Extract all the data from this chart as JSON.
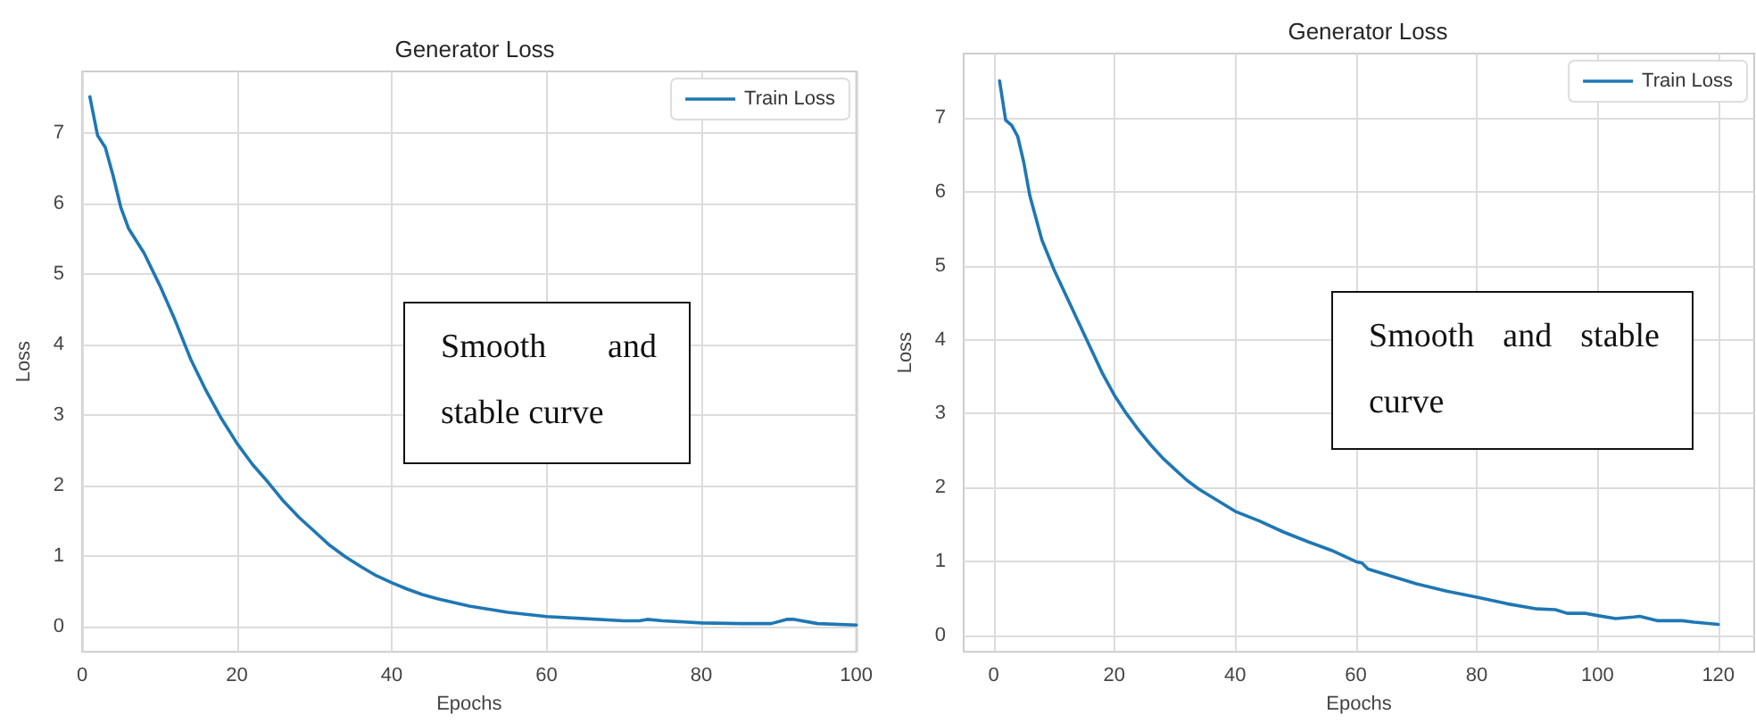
{
  "chart_data": [
    {
      "type": "line",
      "title": "Generator Loss",
      "xlabel": "Epochs",
      "ylabel": "Loss",
      "xlim": [
        0,
        100
      ],
      "xticks": [
        0,
        20,
        40,
        60,
        80,
        100
      ],
      "ylim": [
        -0.36,
        7.88
      ],
      "yticks": [
        0,
        1,
        2,
        3,
        4,
        5,
        6,
        7
      ],
      "grid": true,
      "legend": "top right",
      "annotations": [
        "Smooth and stable curve"
      ],
      "series": [
        {
          "name": "Train Loss",
          "color": "#1f77b4",
          "x": [
            1,
            2,
            3,
            4,
            5,
            6,
            8,
            10,
            12,
            14,
            16,
            18,
            20,
            22,
            24,
            26,
            28,
            30,
            32,
            34,
            36,
            38,
            40,
            42,
            44,
            46,
            48,
            50,
            55,
            60,
            65,
            70,
            72,
            73,
            75,
            80,
            85,
            89,
            91,
            92,
            95,
            100
          ],
          "values": [
            7.52,
            6.97,
            6.8,
            6.4,
            5.95,
            5.65,
            5.3,
            4.85,
            4.35,
            3.8,
            3.35,
            2.95,
            2.6,
            2.3,
            2.05,
            1.78,
            1.55,
            1.35,
            1.15,
            0.99,
            0.85,
            0.72,
            0.62,
            0.53,
            0.45,
            0.39,
            0.34,
            0.29,
            0.2,
            0.14,
            0.11,
            0.08,
            0.08,
            0.1,
            0.08,
            0.05,
            0.04,
            0.04,
            0.1,
            0.1,
            0.04,
            0.02
          ]
        }
      ]
    },
    {
      "type": "line",
      "title": "Generator Loss",
      "xlabel": "Epochs",
      "ylabel": "Loss",
      "xlim": [
        -4.95,
        125.95
      ],
      "xticks": [
        0,
        20,
        40,
        60,
        80,
        100,
        120
      ],
      "ylim": [
        -0.22,
        7.87
      ],
      "yticks": [
        0,
        1,
        2,
        3,
        4,
        5,
        6,
        7
      ],
      "grid": true,
      "legend": "top right",
      "annotations": [
        "Smooth and stable curve"
      ],
      "series": [
        {
          "name": "Train Loss",
          "color": "#1f77b4",
          "x": [
            1,
            2,
            3,
            4,
            5,
            6,
            8,
            10,
            12,
            14,
            16,
            18,
            20,
            22,
            24,
            26,
            28,
            30,
            32,
            34,
            36,
            38,
            40,
            44,
            48,
            52,
            56,
            60,
            61,
            62,
            66,
            70,
            75,
            80,
            85,
            90,
            93,
            95,
            98,
            100,
            103,
            106,
            107,
            110,
            114,
            116,
            120
          ],
          "values": [
            7.5,
            6.97,
            6.9,
            6.75,
            6.4,
            5.95,
            5.35,
            4.95,
            4.6,
            4.25,
            3.9,
            3.55,
            3.25,
            3.0,
            2.78,
            2.58,
            2.4,
            2.25,
            2.1,
            1.98,
            1.88,
            1.78,
            1.68,
            1.55,
            1.4,
            1.27,
            1.15,
            1.0,
            0.98,
            0.9,
            0.8,
            0.7,
            0.6,
            0.52,
            0.43,
            0.36,
            0.35,
            0.3,
            0.3,
            0.27,
            0.23,
            0.25,
            0.26,
            0.2,
            0.2,
            0.18,
            0.15
          ]
        }
      ]
    }
  ]
}
